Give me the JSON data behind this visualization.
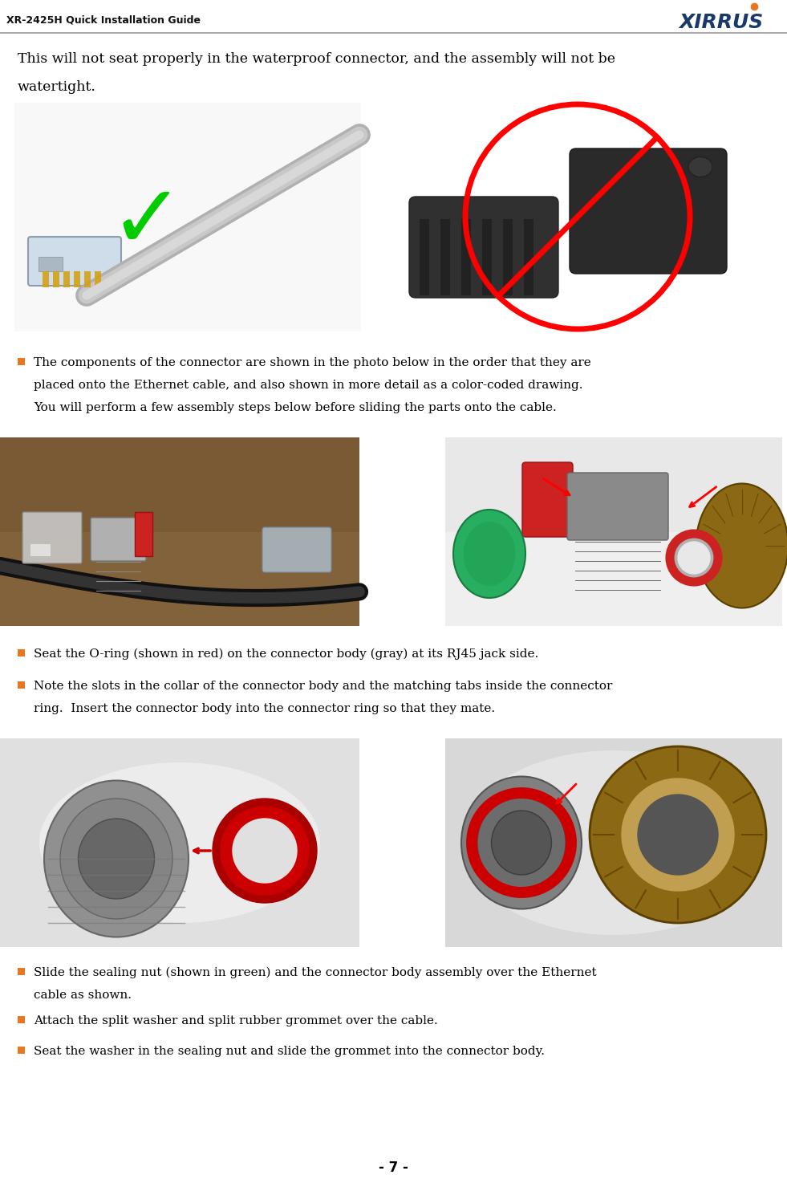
{
  "title_left": "XR-2425H Quick Installation Guide",
  "title_right": "XIRRUS",
  "background_color": "#ffffff",
  "text_color": "#000000",
  "xirrus_color": "#1a3a6b",
  "xirrus_dot_color": "#e87722",
  "page_number": "- 7 -",
  "intro_text_line1": "This will not seat properly in the waterproof connector, and the assembly will not be",
  "intro_text_line2": "watertight.",
  "bullet1_line1": "The components of the connector are shown in the photo below in the order that they are",
  "bullet1_line2": "placed onto the Ethernet cable, and also shown in more detail as a color-coded drawing.",
  "bullet1_line3": "You will perform a few assembly steps below before sliding the parts onto the cable.",
  "bullet2": "Seat the O-ring (shown in red) on the connector body (gray) at its RJ45 jack side.",
  "bullet3_line1": "Note the slots in the collar of the connector body and the matching tabs inside the connector",
  "bullet3_line2": "ring.  Insert the connector body into the connector ring so that they mate.",
  "bullet4_line1": "Slide the sealing nut (shown in green) and the connector body assembly over the Ethernet",
  "bullet4_line2": "cable as shown.",
  "bullet5": "Attach the split washer and split rubber grommet over the cable.",
  "bullet6": "Seat the washer in the sealing nut and slide the grommet into the connector body.",
  "header_line_color": "#aaaaaa",
  "bullet_color": "#e87722",
  "img1_bg": "#f0f0f0",
  "img2_bg": "#f0f0f0",
  "img3_bg": "#8b6914",
  "img4_bg": "#d8d8d8",
  "img5_bg": "#e8e8e8",
  "img6_bg": "#e0e0e0"
}
